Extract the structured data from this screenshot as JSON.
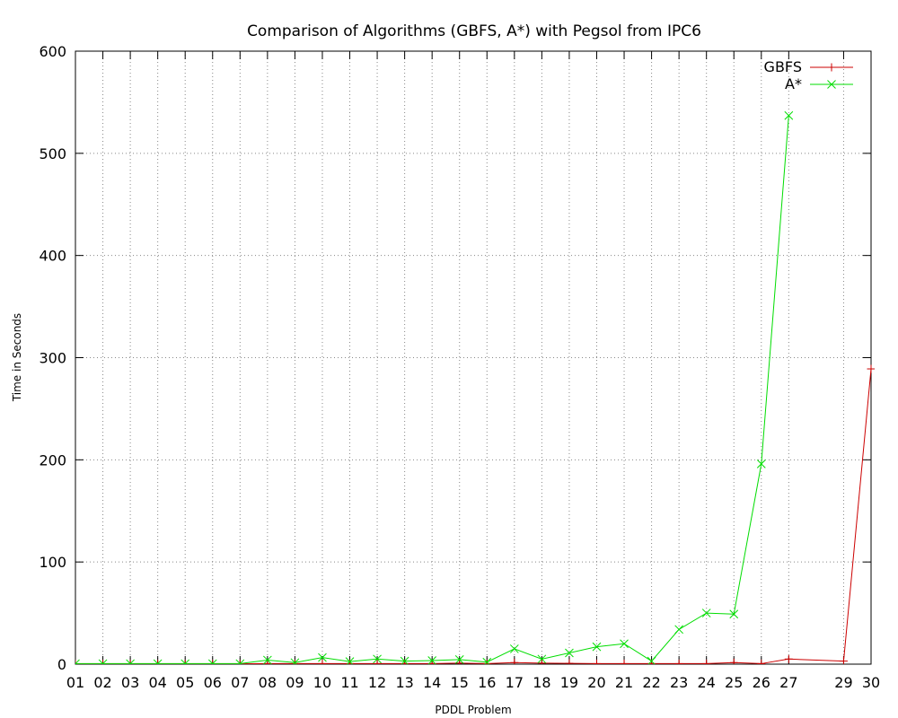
{
  "chart_data": {
    "type": "line",
    "title": "Comparison of Algorithms (GBFS, A*) with Pegsol from IPC6",
    "xlabel": "PDDL Problem",
    "ylabel": "Time in Seconds",
    "ylim": [
      0,
      600
    ],
    "yticks": [
      "0",
      "100",
      "200",
      "300",
      "400",
      "500",
      "600"
    ],
    "categories": [
      "01",
      "02",
      "03",
      "04",
      "05",
      "06",
      "07",
      "08",
      "09",
      "10",
      "11",
      "12",
      "13",
      "14",
      "15",
      "16",
      "17",
      "18",
      "19",
      "20",
      "21",
      "22",
      "23",
      "24",
      "25",
      "26",
      "27",
      "29",
      "30"
    ],
    "grid": true,
    "legend_position": "top-right",
    "series": [
      {
        "name": "GBFS",
        "color": "#cc0000",
        "marker": "plus",
        "x": [
          "01",
          "02",
          "03",
          "04",
          "05",
          "06",
          "07",
          "08",
          "09",
          "10",
          "11",
          "12",
          "13",
          "14",
          "15",
          "16",
          "17",
          "18",
          "19",
          "20",
          "21",
          "22",
          "23",
          "24",
          "25",
          "26",
          "27",
          "29",
          "30"
        ],
        "values": [
          0.3,
          0.3,
          0.3,
          0.3,
          0.3,
          0.3,
          0.3,
          0.5,
          0.5,
          0.5,
          0.5,
          0.5,
          0.5,
          0.5,
          1,
          0.5,
          1.5,
          1,
          0.8,
          0.5,
          0.5,
          0.5,
          0.5,
          0.5,
          1.5,
          0.5,
          5,
          3,
          289
        ]
      },
      {
        "name": "A*",
        "color": "#00dd00",
        "marker": "cross",
        "x": [
          "01",
          "02",
          "03",
          "04",
          "05",
          "06",
          "07",
          "08",
          "09",
          "10",
          "11",
          "12",
          "13",
          "14",
          "15",
          "16",
          "17",
          "18",
          "19",
          "20",
          "21",
          "22",
          "23",
          "24",
          "25",
          "26",
          "27"
        ],
        "values": [
          0.5,
          0.5,
          0.5,
          0.5,
          0.5,
          0.5,
          0.5,
          4,
          1.5,
          6.5,
          2.5,
          5,
          3,
          3.5,
          4.5,
          2,
          15,
          5,
          11,
          17,
          20,
          3,
          34,
          50,
          49,
          196,
          537
        ]
      }
    ]
  }
}
